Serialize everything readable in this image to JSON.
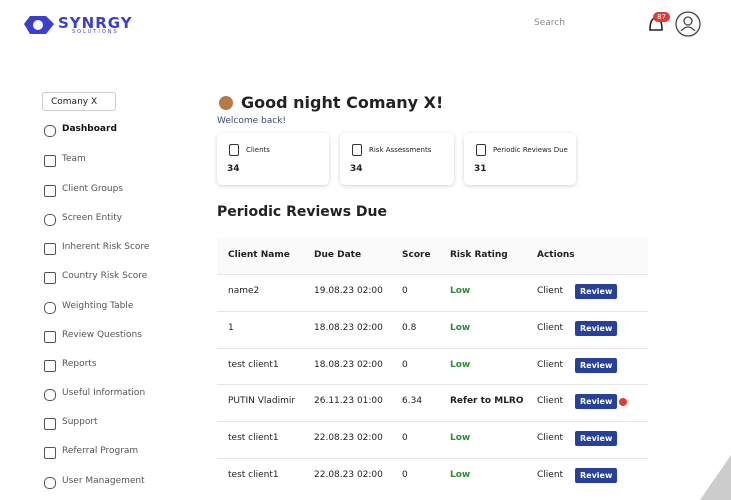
{
  "header": {
    "logo": "SYNRGY",
    "logo_sub": "SOLUTIONS",
    "search": "Search",
    "notifications": "87"
  },
  "sidebar": {
    "company": "Comany X",
    "items": [
      "Dashboard",
      "Team",
      "Client Groups",
      "Screen Entity",
      "Inherent Risk Score",
      "Country Risk Score",
      "Weighting Table",
      "Review Questions",
      "Reports",
      "Useful Information",
      "Support",
      "Referral Program",
      "User Management"
    ]
  },
  "greeting": {
    "title": "Good night Comany X!",
    "subtitle": "Welcome back!"
  },
  "cards": [
    {
      "label": "Clients",
      "value": "34"
    },
    {
      "label": "Risk Assessments",
      "value": "34"
    },
    {
      "label": "Periodic Reviews Due",
      "value": "31"
    }
  ],
  "table": {
    "title": "Periodic Reviews Due",
    "columns": [
      "Client Name",
      "Due Date",
      "Score",
      "Risk Rating",
      "Actions"
    ],
    "rows": [
      [
        "name2",
        "19.08.23 02:00",
        "0",
        "Low",
        "Client",
        "Review"
      ],
      [
        "1",
        "18.08.23 02:00",
        "0.8",
        "Low",
        "Client",
        "Review"
      ],
      [
        "test client1",
        "18.08.23 02:00",
        "0",
        "Low",
        "Client",
        "Review"
      ],
      [
        "PUTIN Vladimir",
        "26.11.23 01:00",
        "6.34",
        "Refer to MLRO",
        "Client",
        "Review"
      ],
      [
        "test client1",
        "22.08.23 02:00",
        "0",
        "Low",
        "Client",
        "Review"
      ],
      [
        "test client1",
        "22.08.23 02:00",
        "0",
        "Low",
        "Client",
        "Review"
      ]
    ],
    "flagged_rows": [
      3
    ]
  }
}
